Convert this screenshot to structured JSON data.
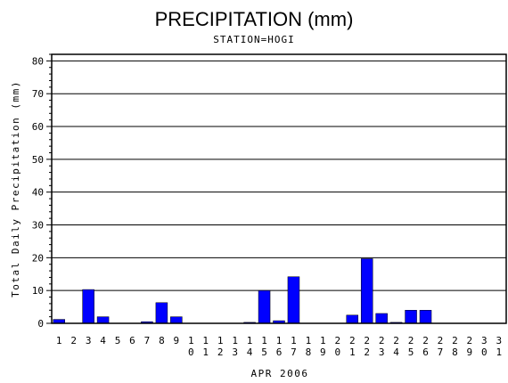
{
  "chart_data": {
    "type": "bar",
    "title": "PRECIPITATION (mm)",
    "subtitle": "STATION=HOGI",
    "xlabel": "APR 2006",
    "ylabel": "Total Daily Precipitation (mm)",
    "ylim": [
      0,
      82
    ],
    "yticks": [
      0,
      10,
      20,
      30,
      40,
      50,
      60,
      70,
      80
    ],
    "grid": true,
    "categories": [
      "1",
      "2",
      "3",
      "4",
      "5",
      "6",
      "7",
      "8",
      "9",
      "10",
      "11",
      "12",
      "13",
      "14",
      "15",
      "16",
      "17",
      "18",
      "19",
      "20",
      "21",
      "22",
      "23",
      "24",
      "25",
      "26",
      "27",
      "28",
      "29",
      "30",
      "31"
    ],
    "values": [
      1.2,
      0,
      10.3,
      2.0,
      0,
      0,
      0.5,
      6.3,
      2.0,
      0,
      0,
      0,
      0,
      0.3,
      10.0,
      0.8,
      14.2,
      0,
      0,
      0,
      2.5,
      19.7,
      3.0,
      0.3,
      4.0,
      4.0,
      0,
      0,
      0,
      0,
      0
    ],
    "bar_color": "#0000ff"
  }
}
